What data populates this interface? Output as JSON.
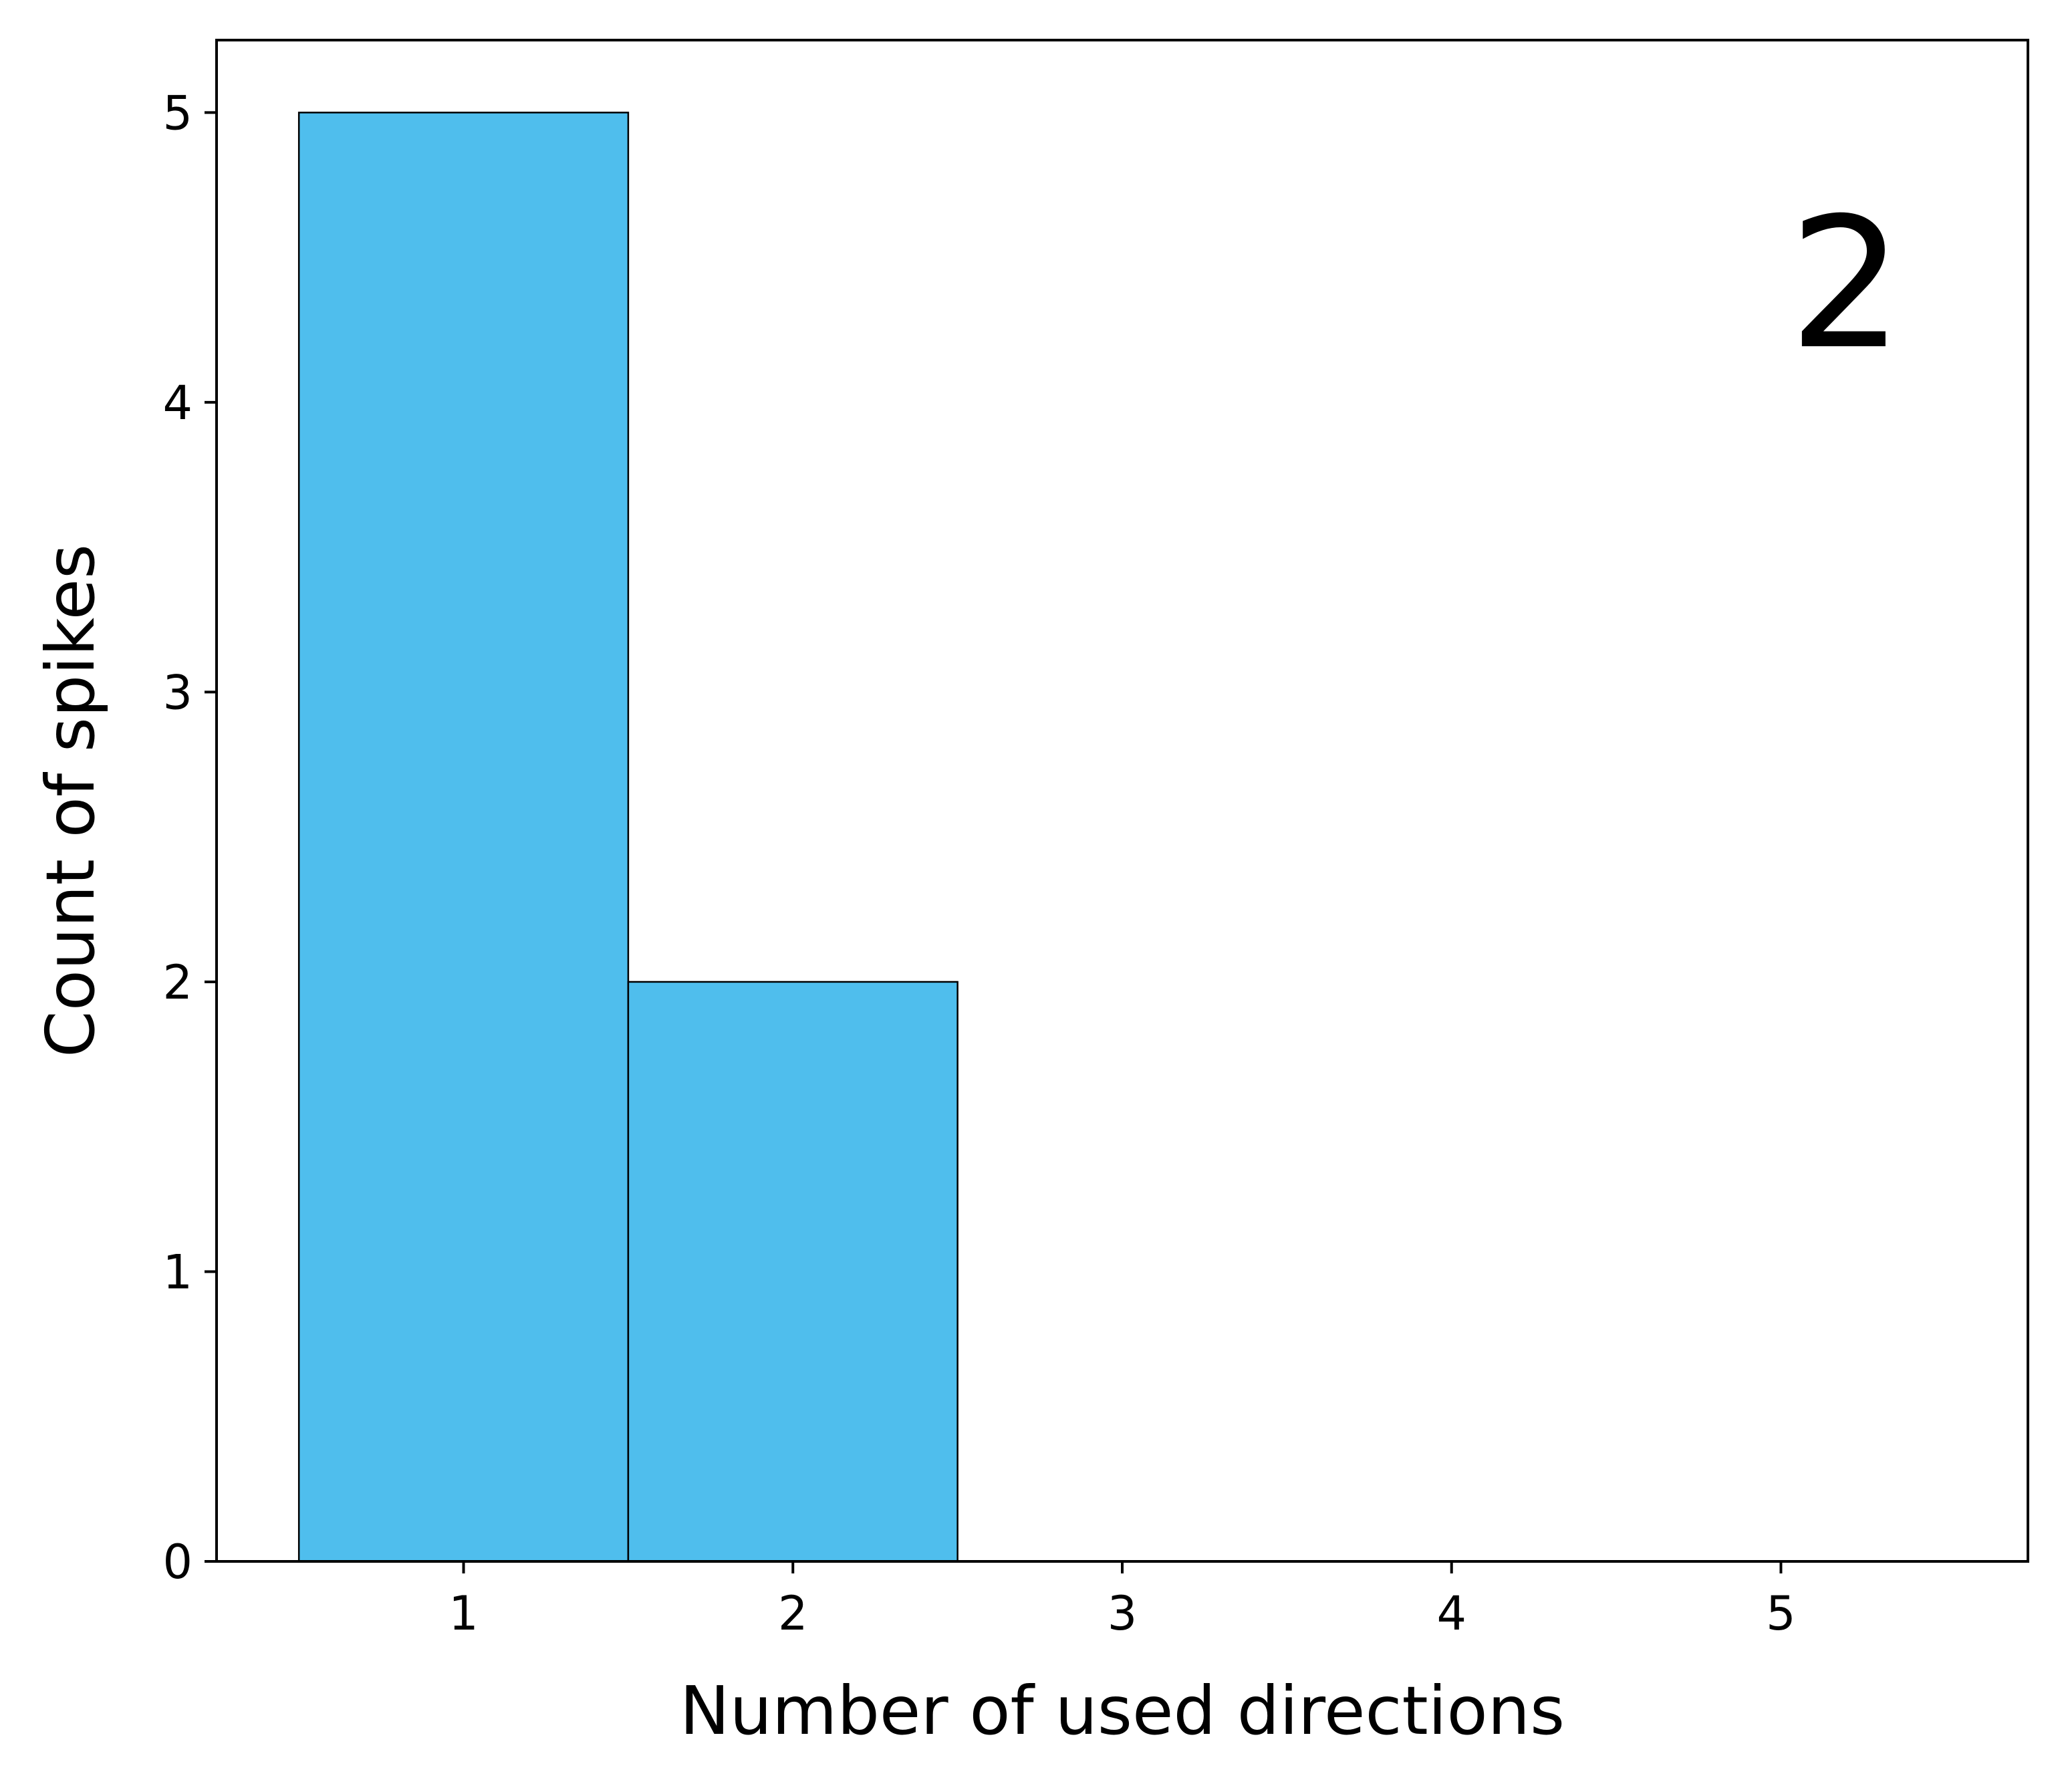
{
  "chart_data": {
    "type": "bar",
    "histogram": true,
    "x": [
      1,
      2,
      3,
      4,
      5
    ],
    "values": [
      5,
      2,
      0,
      0,
      0
    ],
    "bin_width": 1,
    "xlabel": "Number of used directions",
    "ylabel": "Count of spikes",
    "xlim": [
      0.25,
      5.75
    ],
    "ylim": [
      0,
      5.25
    ],
    "xticks": [
      1,
      2,
      3,
      4,
      5
    ],
    "yticks": [
      0,
      1,
      2,
      3,
      4,
      5
    ],
    "grid": false,
    "legend": "none",
    "annotation": "2",
    "colors": {
      "bar_fill": "#4fbeed",
      "bar_edge": "#000000",
      "axes": "#000000",
      "background": "#ffffff"
    }
  }
}
